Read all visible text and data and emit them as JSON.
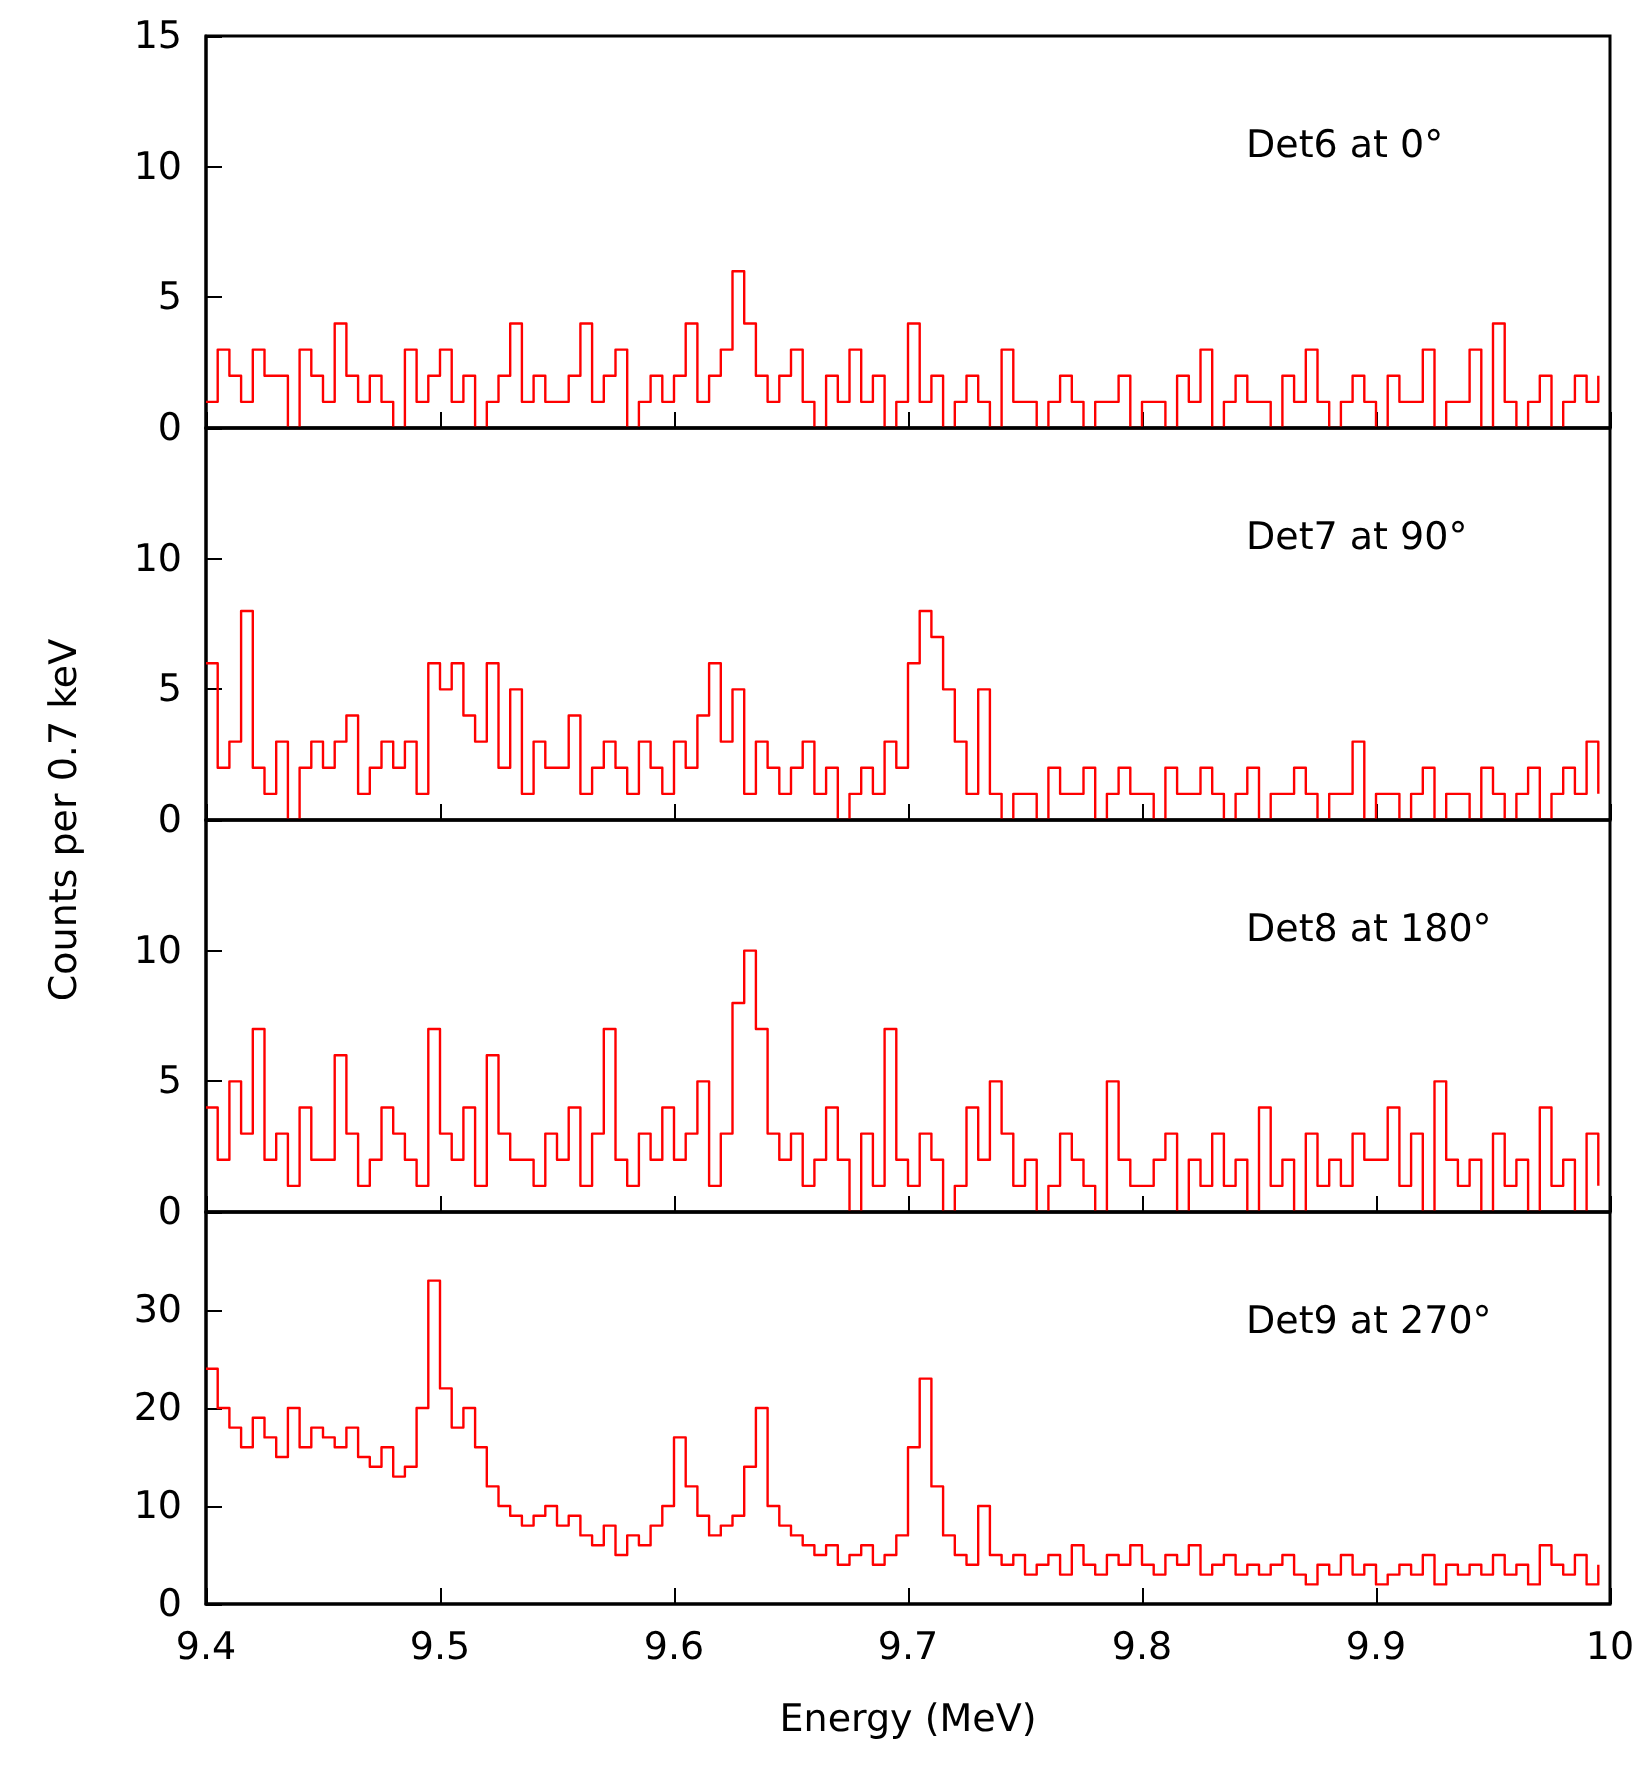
{
  "chart_data": [
    {
      "type": "step",
      "annotations": [
        "Det6 at 0°"
      ],
      "xlim": [
        9.4,
        10
      ],
      "xticks": [
        9.4,
        9.5,
        9.6,
        9.7,
        9.8,
        9.9,
        10
      ],
      "ylim": [
        0,
        15
      ],
      "yticks": [
        0,
        5,
        10,
        15
      ],
      "tick_labels": "y",
      "x": [
        9.4,
        9.405,
        9.41,
        9.415,
        9.42,
        9.425,
        9.43,
        9.435,
        9.44,
        9.445,
        9.45,
        9.455,
        9.46,
        9.465,
        9.47,
        9.475,
        9.48,
        9.485,
        9.49,
        9.495,
        9.5,
        9.505,
        9.51,
        9.515,
        9.52,
        9.525,
        9.53,
        9.535,
        9.54,
        9.545,
        9.55,
        9.555,
        9.56,
        9.565,
        9.57,
        9.575,
        9.58,
        9.585,
        9.59,
        9.595,
        9.6,
        9.605,
        9.61,
        9.615,
        9.62,
        9.625,
        9.63,
        9.635,
        9.64,
        9.645,
        9.65,
        9.655,
        9.66,
        9.665,
        9.67,
        9.675,
        9.68,
        9.685,
        9.69,
        9.695,
        9.7,
        9.705,
        9.71,
        9.715,
        9.72,
        9.725,
        9.73,
        9.735,
        9.74,
        9.745,
        9.75,
        9.755,
        9.76,
        9.765,
        9.77,
        9.775,
        9.78,
        9.785,
        9.79,
        9.795,
        9.8,
        9.805,
        9.81,
        9.815,
        9.82,
        9.825,
        9.83,
        9.835,
        9.84,
        9.845,
        9.85,
        9.855,
        9.86,
        9.865,
        9.87,
        9.875,
        9.88,
        9.885,
        9.89,
        9.895,
        9.9,
        9.905,
        9.91,
        9.915,
        9.92,
        9.925,
        9.93,
        9.935,
        9.94,
        9.945,
        9.95,
        9.955,
        9.96,
        9.965,
        9.97,
        9.975,
        9.98,
        9.985,
        9.99,
        9.995
      ],
      "series": [
        {
          "color": "#ff0000",
          "values": [
            1,
            3,
            2,
            1,
            3,
            2,
            2,
            0,
            3,
            2,
            1,
            4,
            2,
            1,
            2,
            1,
            0,
            3,
            1,
            2,
            3,
            1,
            2,
            0,
            1,
            2,
            4,
            1,
            2,
            1,
            1,
            2,
            4,
            1,
            2,
            3,
            0,
            1,
            2,
            1,
            2,
            4,
            1,
            2,
            3,
            6,
            4,
            2,
            1,
            2,
            3,
            1,
            0,
            2,
            1,
            3,
            1,
            2,
            0,
            1,
            4,
            1,
            2,
            0,
            1,
            2,
            1,
            0,
            3,
            1,
            1,
            0,
            1,
            2,
            1,
            0,
            1,
            1,
            2,
            0,
            1,
            1,
            0,
            2,
            1,
            3,
            0,
            1,
            2,
            1,
            1,
            0,
            2,
            1,
            3,
            1,
            0,
            1,
            2,
            1,
            0,
            2,
            1,
            1,
            3,
            0,
            1,
            1,
            3,
            0,
            4,
            1,
            0,
            1,
            2,
            0,
            1,
            2,
            1,
            2
          ]
        }
      ]
    },
    {
      "type": "step",
      "annotations": [
        "Det7 at 90°"
      ],
      "ylabel": "Counts per 0.7 keV",
      "xlim": [
        9.4,
        10
      ],
      "xticks": [
        9.4,
        9.5,
        9.6,
        9.7,
        9.8,
        9.9,
        10
      ],
      "ylim": [
        0,
        15
      ],
      "yticks": [
        0,
        5,
        10
      ],
      "tick_labels": "y",
      "x": [
        9.4,
        9.405,
        9.41,
        9.415,
        9.42,
        9.425,
        9.43,
        9.435,
        9.44,
        9.445,
        9.45,
        9.455,
        9.46,
        9.465,
        9.47,
        9.475,
        9.48,
        9.485,
        9.49,
        9.495,
        9.5,
        9.505,
        9.51,
        9.515,
        9.52,
        9.525,
        9.53,
        9.535,
        9.54,
        9.545,
        9.55,
        9.555,
        9.56,
        9.565,
        9.57,
        9.575,
        9.58,
        9.585,
        9.59,
        9.595,
        9.6,
        9.605,
        9.61,
        9.615,
        9.62,
        9.625,
        9.63,
        9.635,
        9.64,
        9.645,
        9.65,
        9.655,
        9.66,
        9.665,
        9.67,
        9.675,
        9.68,
        9.685,
        9.69,
        9.695,
        9.7,
        9.705,
        9.71,
        9.715,
        9.72,
        9.725,
        9.73,
        9.735,
        9.74,
        9.745,
        9.75,
        9.755,
        9.76,
        9.765,
        9.77,
        9.775,
        9.78,
        9.785,
        9.79,
        9.795,
        9.8,
        9.805,
        9.81,
        9.815,
        9.82,
        9.825,
        9.83,
        9.835,
        9.84,
        9.845,
        9.85,
        9.855,
        9.86,
        9.865,
        9.87,
        9.875,
        9.88,
        9.885,
        9.89,
        9.895,
        9.9,
        9.905,
        9.91,
        9.915,
        9.92,
        9.925,
        9.93,
        9.935,
        9.94,
        9.945,
        9.95,
        9.955,
        9.96,
        9.965,
        9.97,
        9.975,
        9.98,
        9.985,
        9.99,
        9.995
      ],
      "series": [
        {
          "color": "#ff0000",
          "values": [
            6,
            2,
            3,
            8,
            2,
            1,
            3,
            0,
            2,
            3,
            2,
            3,
            4,
            1,
            2,
            3,
            2,
            3,
            1,
            6,
            5,
            6,
            4,
            3,
            6,
            2,
            5,
            1,
            3,
            2,
            2,
            4,
            1,
            2,
            3,
            2,
            1,
            3,
            2,
            1,
            3,
            2,
            4,
            6,
            3,
            5,
            1,
            3,
            2,
            1,
            2,
            3,
            1,
            2,
            0,
            1,
            2,
            1,
            3,
            2,
            6,
            8,
            7,
            5,
            3,
            1,
            5,
            1,
            0,
            1,
            1,
            0,
            2,
            1,
            1,
            2,
            0,
            1,
            2,
            1,
            1,
            0,
            2,
            1,
            1,
            2,
            1,
            0,
            1,
            2,
            0,
            1,
            1,
            2,
            1,
            0,
            1,
            1,
            3,
            0,
            1,
            1,
            0,
            1,
            2,
            0,
            1,
            1,
            0,
            2,
            1,
            0,
            1,
            2,
            0,
            1,
            2,
            1,
            3,
            1
          ]
        }
      ]
    },
    {
      "type": "step",
      "annotations": [
        "Det8 at 180°"
      ],
      "xlim": [
        9.4,
        10
      ],
      "xticks": [
        9.4,
        9.5,
        9.6,
        9.7,
        9.8,
        9.9,
        10
      ],
      "ylim": [
        0,
        15
      ],
      "yticks": [
        0,
        5,
        10
      ],
      "tick_labels": "y",
      "x": [
        9.4,
        9.405,
        9.41,
        9.415,
        9.42,
        9.425,
        9.43,
        9.435,
        9.44,
        9.445,
        9.45,
        9.455,
        9.46,
        9.465,
        9.47,
        9.475,
        9.48,
        9.485,
        9.49,
        9.495,
        9.5,
        9.505,
        9.51,
        9.515,
        9.52,
        9.525,
        9.53,
        9.535,
        9.54,
        9.545,
        9.55,
        9.555,
        9.56,
        9.565,
        9.57,
        9.575,
        9.58,
        9.585,
        9.59,
        9.595,
        9.6,
        9.605,
        9.61,
        9.615,
        9.62,
        9.625,
        9.63,
        9.635,
        9.64,
        9.645,
        9.65,
        9.655,
        9.66,
        9.665,
        9.67,
        9.675,
        9.68,
        9.685,
        9.69,
        9.695,
        9.7,
        9.705,
        9.71,
        9.715,
        9.72,
        9.725,
        9.73,
        9.735,
        9.74,
        9.745,
        9.75,
        9.755,
        9.76,
        9.765,
        9.77,
        9.775,
        9.78,
        9.785,
        9.79,
        9.795,
        9.8,
        9.805,
        9.81,
        9.815,
        9.82,
        9.825,
        9.83,
        9.835,
        9.84,
        9.845,
        9.85,
        9.855,
        9.86,
        9.865,
        9.87,
        9.875,
        9.88,
        9.885,
        9.89,
        9.895,
        9.9,
        9.905,
        9.91,
        9.915,
        9.92,
        9.925,
        9.93,
        9.935,
        9.94,
        9.945,
        9.95,
        9.955,
        9.96,
        9.965,
        9.97,
        9.975,
        9.98,
        9.985,
        9.99,
        9.995
      ],
      "series": [
        {
          "color": "#ff0000",
          "values": [
            4,
            2,
            5,
            3,
            7,
            2,
            3,
            1,
            4,
            2,
            2,
            6,
            3,
            1,
            2,
            4,
            3,
            2,
            1,
            7,
            3,
            2,
            4,
            1,
            6,
            3,
            2,
            2,
            1,
            3,
            2,
            4,
            1,
            3,
            7,
            2,
            1,
            3,
            2,
            4,
            2,
            3,
            5,
            1,
            3,
            8,
            10,
            7,
            3,
            2,
            3,
            1,
            2,
            4,
            2,
            0,
            3,
            1,
            7,
            2,
            1,
            3,
            2,
            0,
            1,
            4,
            2,
            5,
            3,
            1,
            2,
            0,
            1,
            3,
            2,
            1,
            0,
            5,
            2,
            1,
            1,
            2,
            3,
            0,
            2,
            1,
            3,
            1,
            2,
            0,
            4,
            1,
            2,
            0,
            3,
            1,
            2,
            1,
            3,
            2,
            2,
            4,
            1,
            3,
            0,
            5,
            2,
            1,
            2,
            0,
            3,
            1,
            2,
            0,
            4,
            1,
            2,
            0,
            3,
            1
          ]
        }
      ]
    },
    {
      "type": "step",
      "annotations": [
        "Det9 at 270°"
      ],
      "xlabel": "Energy (MeV)",
      "xlim": [
        9.4,
        10
      ],
      "xticks": [
        9.4,
        9.5,
        9.6,
        9.7,
        9.8,
        9.9,
        10
      ],
      "ylim": [
        0,
        40
      ],
      "yticks": [
        0,
        10,
        20,
        30
      ],
      "x": [
        9.4,
        9.405,
        9.41,
        9.415,
        9.42,
        9.425,
        9.43,
        9.435,
        9.44,
        9.445,
        9.45,
        9.455,
        9.46,
        9.465,
        9.47,
        9.475,
        9.48,
        9.485,
        9.49,
        9.495,
        9.5,
        9.505,
        9.51,
        9.515,
        9.52,
        9.525,
        9.53,
        9.535,
        9.54,
        9.545,
        9.55,
        9.555,
        9.56,
        9.565,
        9.57,
        9.575,
        9.58,
        9.585,
        9.59,
        9.595,
        9.6,
        9.605,
        9.61,
        9.615,
        9.62,
        9.625,
        9.63,
        9.635,
        9.64,
        9.645,
        9.65,
        9.655,
        9.66,
        9.665,
        9.67,
        9.675,
        9.68,
        9.685,
        9.69,
        9.695,
        9.7,
        9.705,
        9.71,
        9.715,
        9.72,
        9.725,
        9.73,
        9.735,
        9.74,
        9.745,
        9.75,
        9.755,
        9.76,
        9.765,
        9.77,
        9.775,
        9.78,
        9.785,
        9.79,
        9.795,
        9.8,
        9.805,
        9.81,
        9.815,
        9.82,
        9.825,
        9.83,
        9.835,
        9.84,
        9.845,
        9.85,
        9.855,
        9.86,
        9.865,
        9.87,
        9.875,
        9.88,
        9.885,
        9.89,
        9.895,
        9.9,
        9.905,
        9.91,
        9.915,
        9.92,
        9.925,
        9.93,
        9.935,
        9.94,
        9.945,
        9.95,
        9.955,
        9.96,
        9.965,
        9.97,
        9.975,
        9.98,
        9.985,
        9.99,
        9.995
      ],
      "series": [
        {
          "color": "#ff0000",
          "values": [
            24,
            20,
            18,
            16,
            19,
            17,
            15,
            20,
            16,
            18,
            17,
            16,
            18,
            15,
            14,
            16,
            13,
            14,
            20,
            33,
            22,
            18,
            20,
            16,
            12,
            10,
            9,
            8,
            9,
            10,
            8,
            9,
            7,
            6,
            8,
            5,
            7,
            6,
            8,
            10,
            17,
            12,
            9,
            7,
            8,
            9,
            14,
            20,
            10,
            8,
            7,
            6,
            5,
            6,
            4,
            5,
            6,
            4,
            5,
            7,
            16,
            23,
            12,
            7,
            5,
            4,
            10,
            5,
            4,
            5,
            3,
            4,
            5,
            3,
            6,
            4,
            3,
            5,
            4,
            6,
            4,
            3,
            5,
            4,
            6,
            3,
            4,
            5,
            3,
            4,
            3,
            4,
            5,
            3,
            2,
            4,
            3,
            5,
            3,
            4,
            2,
            3,
            4,
            3,
            5,
            2,
            4,
            3,
            4,
            3,
            5,
            3,
            4,
            2,
            6,
            4,
            3,
            5,
            2,
            4
          ]
        }
      ]
    }
  ]
}
